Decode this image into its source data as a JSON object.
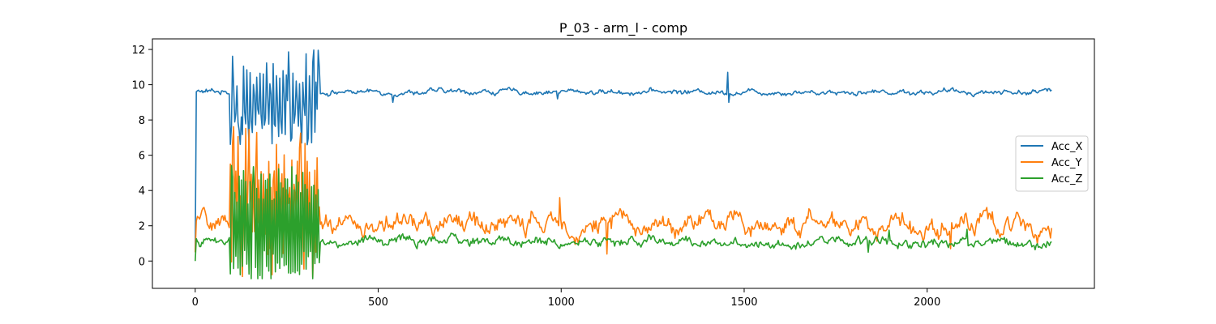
{
  "chart_data": {
    "type": "line",
    "title": "P_03 - arm_l - comp",
    "xlabel": "",
    "ylabel": "",
    "xlim": [
      -117,
      2457
    ],
    "ylim": [
      -1.55,
      12.6
    ],
    "xticks": [
      0,
      500,
      1000,
      1500,
      2000
    ],
    "xtick_labels": [
      "0",
      "500",
      "1000",
      "1500",
      "2000"
    ],
    "yticks": [
      0,
      2,
      4,
      6,
      8,
      10,
      12
    ],
    "ytick_labels": [
      "0",
      "2",
      "4",
      "6",
      "8",
      "10",
      "12"
    ],
    "grid": false,
    "legend_position": "center-right",
    "x_max": 2340,
    "series": [
      {
        "name": "Acc_X",
        "color": "#1f77b4",
        "start": 0.5,
        "jump_index": 3,
        "base": 9.6,
        "noise": 0.12,
        "burst": {
          "start": 95,
          "end": 340,
          "center": 8.8,
          "amplitude": 1.8,
          "low": 6.6,
          "high": 12.0,
          "period": 9
        },
        "spikes": [
          {
            "x": 1455,
            "y": 10.7
          },
          {
            "x": 1458,
            "y": 9.0
          },
          {
            "x": 990,
            "y": 9.2
          },
          {
            "x": 540,
            "y": 9.0
          }
        ]
      },
      {
        "name": "Acc_Y",
        "color": "#ff7f0e",
        "start": 0.5,
        "jump_index": 3,
        "base": 2.1,
        "noise": 0.45,
        "burst": {
          "start": 95,
          "end": 340,
          "center": 3.6,
          "amplitude": 2.6,
          "low": -1.0,
          "high": 7.8,
          "period": 7
        },
        "spikes": [
          {
            "x": 98,
            "y": -0.05
          },
          {
            "x": 995,
            "y": 3.6
          },
          {
            "x": 1125,
            "y": 0.4
          },
          {
            "x": 2065,
            "y": 0.7
          }
        ]
      },
      {
        "name": "Acc_Z",
        "color": "#2ca02c",
        "start": 0.0,
        "jump_index": 3,
        "base": 1.1,
        "noise": 0.22,
        "burst": {
          "start": 95,
          "end": 340,
          "center": 2.0,
          "amplitude": 2.4,
          "low": -1.0,
          "high": 5.5,
          "period": 6
        },
        "spikes": [
          {
            "x": 1895,
            "y": 1.75
          },
          {
            "x": 2110,
            "y": 1.8
          },
          {
            "x": 1840,
            "y": 0.5
          }
        ]
      }
    ]
  }
}
